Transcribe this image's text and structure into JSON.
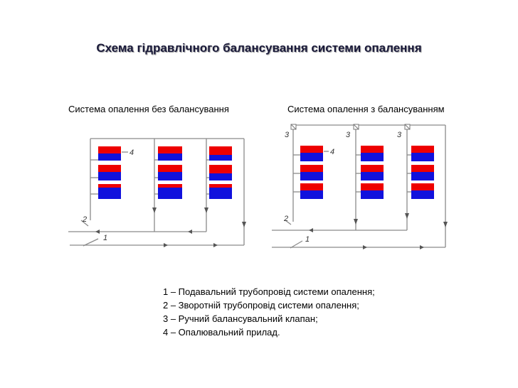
{
  "title": "Схема гідравлічного балансування системи опалення",
  "schemes": [
    {
      "caption": "Система опалення без балансування",
      "callouts": {
        "supply": "1",
        "return": "2",
        "device": "4"
      }
    },
    {
      "caption": "Система опалення з балансуванням",
      "callouts": {
        "supply": "1",
        "return": "2",
        "valve": "3",
        "device": "4"
      }
    }
  ],
  "legend": [
    "1 – Подавальний трубопровід системи опалення;",
    "2 – Зворотній трубопровід системи опалення;",
    "3 – Ручний балансувальний клапан;",
    "4 – Опалювальний прилад."
  ],
  "colors": {
    "hot": "#ee0000",
    "cold": "#1111dd",
    "pipe": "#8a8a8a",
    "title": "#1a1a3a"
  }
}
